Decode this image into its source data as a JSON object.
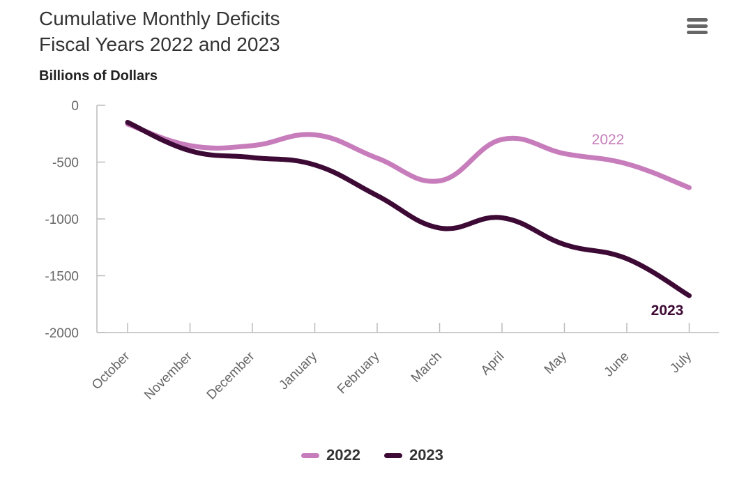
{
  "menu": {
    "icon": "hamburger-menu-icon"
  },
  "chart_data": {
    "type": "line",
    "title_line1": "Cumulative Monthly Deficits",
    "title_line2": "Fiscal Years 2022 and 2023",
    "ylabel": "Billions of Dollars",
    "xlabel": "",
    "categories": [
      "October",
      "November",
      "December",
      "January",
      "February",
      "March",
      "April",
      "May",
      "June",
      "July"
    ],
    "ylim": [
      -2000,
      0
    ],
    "yticks": [
      0,
      -500,
      -1000,
      -1500,
      -2000
    ],
    "ytick_labels": [
      "0",
      "-500",
      "-1000",
      "-1500",
      "-2000"
    ],
    "grid": false,
    "legend_position": "bottom-center",
    "series": [
      {
        "name": "2022",
        "color": "#c77dbb",
        "values": [
          -165,
          -355,
          -355,
          -260,
          -465,
          -665,
          -300,
          -425,
          -515,
          -725
        ]
      },
      {
        "name": "2023",
        "color": "#3d0a35",
        "values": [
          -150,
          -400,
          -460,
          -525,
          -795,
          -1080,
          -990,
          -1225,
          -1350,
          -1675
        ]
      }
    ]
  }
}
